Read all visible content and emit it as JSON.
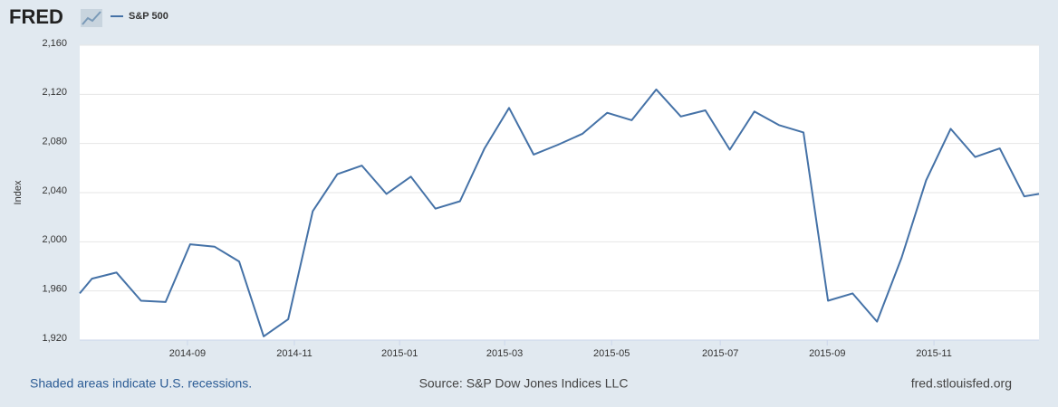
{
  "brand": "FRED",
  "chart_data": {
    "type": "line",
    "y_label": "Index",
    "x": [
      0,
      0.5,
      1.5,
      2.5,
      3.5,
      4.5,
      5.5,
      6.5,
      7.5,
      8.5,
      9.5,
      10.5,
      11.5,
      12.5,
      13.5,
      14.5,
      15.5,
      16.5,
      17.5,
      18.5,
      19.5,
      20.5,
      21.5,
      22.5,
      23.5,
      24.5,
      25.5,
      26.5,
      27.5,
      28.5,
      29.5,
      30.5,
      31.5,
      32.5,
      33.5,
      34.5,
      35.5,
      36.5,
      37.5,
      38.5,
      39.1
    ],
    "series": [
      {
        "name": "S&P 500",
        "color": "#4572a7",
        "values": [
          1958,
          1970,
          1975,
          1952,
          1951,
          1998,
          1996,
          1984,
          1923,
          1937,
          2025,
          2055,
          2062,
          2039,
          2053,
          2027,
          2033,
          2076,
          2109,
          2071,
          2079,
          2088,
          2105,
          2099,
          2124,
          2102,
          2107,
          2075,
          2106,
          2095,
          2089,
          1952,
          1958,
          1935,
          1987,
          2050,
          2092,
          2069,
          2076,
          2037,
          2039
        ]
      }
    ],
    "xlim": [
      0,
      39.1
    ],
    "xticks": [
      {
        "value": 4.39,
        "label": "2014-09"
      },
      {
        "value": 8.75,
        "label": "2014-11"
      },
      {
        "value": 13.04,
        "label": "2015-01"
      },
      {
        "value": 17.32,
        "label": "2015-03"
      },
      {
        "value": 21.68,
        "label": "2015-05"
      },
      {
        "value": 26.11,
        "label": "2015-07"
      },
      {
        "value": 30.47,
        "label": "2015-09"
      },
      {
        "value": 34.82,
        "label": "2015-11"
      }
    ],
    "ylim": [
      1920,
      2160
    ],
    "yticks": [
      {
        "value": 1920,
        "label": "1,920"
      },
      {
        "value": 1960,
        "label": "1,960"
      },
      {
        "value": 2000,
        "label": "2,000"
      },
      {
        "value": 2040,
        "label": "2,040"
      },
      {
        "value": 2080,
        "label": "2,080"
      },
      {
        "value": 2120,
        "label": "2,120"
      },
      {
        "value": 2160,
        "label": "2,160"
      }
    ],
    "grid": true
  },
  "footer": {
    "left": "Shaded areas indicate U.S. recessions.",
    "center": "Source: S&P Dow Jones Indices LLC",
    "right": "fred.stlouisfed.org"
  }
}
